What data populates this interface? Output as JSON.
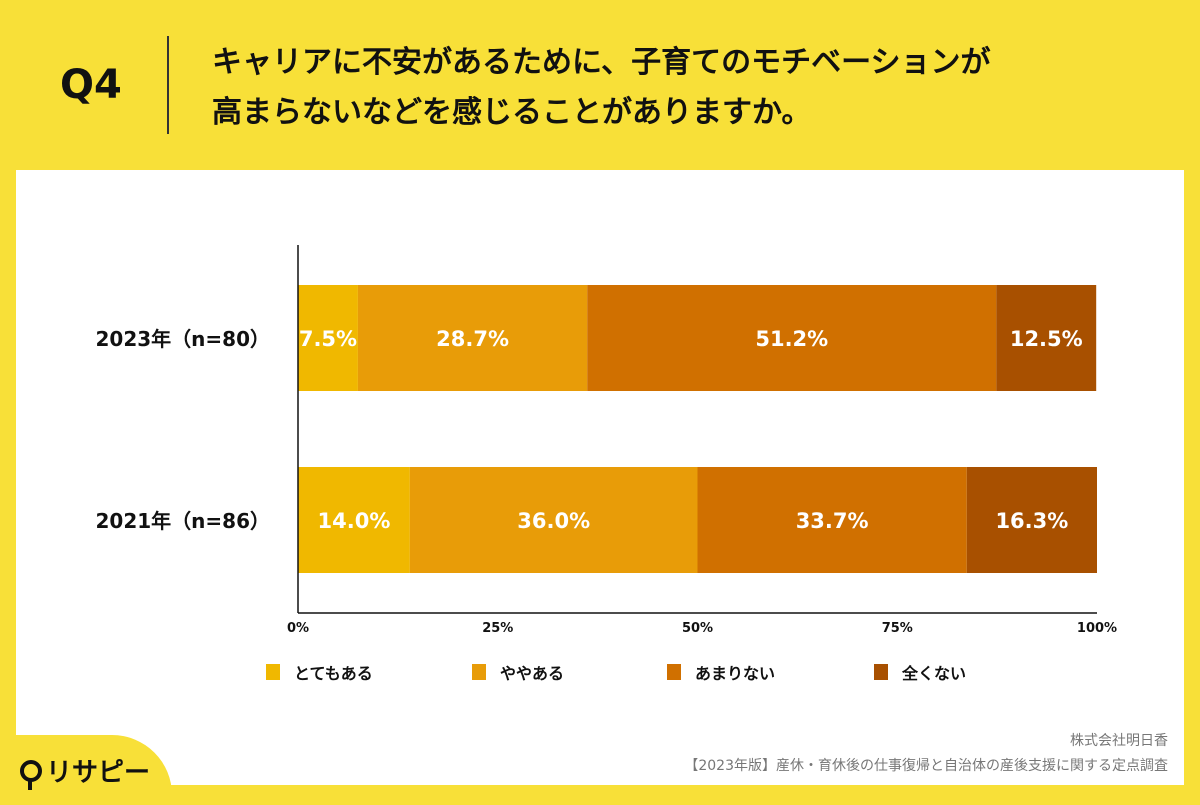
{
  "header": {
    "question": "Q4",
    "title_line1": "キャリアに不安があるために、子育てのモチベーションが",
    "title_line2": "高まらないなどを感じることがありますか。"
  },
  "footer": {
    "company": "株式会社明日香",
    "survey": "【2023年版】産休・育休後の仕事復帰と自治体の産後支援に関する定点調査",
    "logo": "リサピー"
  },
  "chart_data": {
    "type": "bar",
    "orientation": "horizontal",
    "stacked": true,
    "categories": [
      "2023年（n=80）",
      "2021年（n=86）"
    ],
    "series": [
      {
        "name": "とてもある",
        "values": [
          7.5,
          14.0
        ],
        "color": "#F0B800"
      },
      {
        "name": "ややある",
        "values": [
          28.7,
          36.0
        ],
        "color": "#E89C08"
      },
      {
        "name": "あまりない",
        "values": [
          51.2,
          33.7
        ],
        "color": "#D07000"
      },
      {
        "name": "全くない",
        "values": [
          12.5,
          16.3
        ],
        "color": "#A85000"
      }
    ],
    "xlim": [
      0,
      100
    ],
    "xticks": [
      "0%",
      "25%",
      "50%",
      "75%",
      "100%"
    ],
    "legend": "bottom",
    "grid": false
  }
}
